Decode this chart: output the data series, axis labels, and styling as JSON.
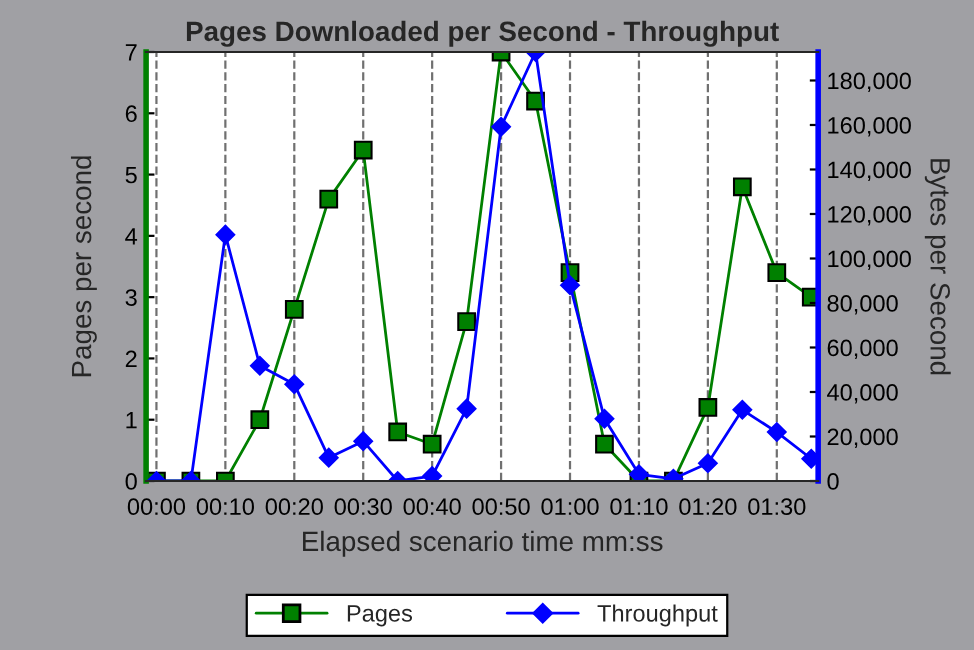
{
  "chart_data": {
    "type": "line",
    "title": "Pages Downloaded per Second - Throughput",
    "xlabel": "Elapsed scenario time mm:ss",
    "ylabel": "Pages per second",
    "y2label": "Bytes per Second",
    "x": [
      0,
      5,
      10,
      15,
      20,
      25,
      30,
      35,
      40,
      45,
      50,
      55,
      60,
      65,
      70,
      75,
      80,
      85,
      90,
      95
    ],
    "series": [
      {
        "name": "Pages",
        "color": "#008000",
        "marker": "square",
        "values": [
          0,
          0,
          0,
          1,
          2.8,
          4.6,
          5.4,
          0.8,
          0.6,
          2.6,
          7,
          6.2,
          3.4,
          0.6,
          0,
          0,
          1.2,
          4.8,
          3.4,
          3.0
        ]
      },
      {
        "name": "Throughput",
        "color": "#0000ff",
        "marker": "diamond",
        "axis": "y2",
        "values": [
          0,
          0,
          110700,
          51800,
          43500,
          10500,
          17900,
          0,
          2200,
          32500,
          159200,
          192800,
          88000,
          28000,
          3000,
          1000,
          8000,
          32000,
          22000,
          10000
        ]
      }
    ],
    "xlim": [
      -1.5,
      96
    ],
    "xticks": [
      {
        "value": 0,
        "label": "00:00"
      },
      {
        "value": 10,
        "label": "00:10"
      },
      {
        "value": 20,
        "label": "00:20"
      },
      {
        "value": 30,
        "label": "00:30"
      },
      {
        "value": 40,
        "label": "00:40"
      },
      {
        "value": 50,
        "label": "00:50"
      },
      {
        "value": 60,
        "label": "01:00"
      },
      {
        "value": 70,
        "label": "01:10"
      },
      {
        "value": 80,
        "label": "01:20"
      },
      {
        "value": 90,
        "label": "01:30"
      }
    ],
    "ylim": [
      0,
      7
    ],
    "yticks": [
      0,
      1,
      2,
      3,
      4,
      5,
      6,
      7
    ],
    "y2lim": [
      0,
      192800
    ],
    "y2ticks": [
      {
        "value": 0,
        "label": "0"
      },
      {
        "value": 20000,
        "label": "20,000"
      },
      {
        "value": 40000,
        "label": "40,000"
      },
      {
        "value": 60000,
        "label": "60,000"
      },
      {
        "value": 80000,
        "label": "80,000"
      },
      {
        "value": 100000,
        "label": "100,000"
      },
      {
        "value": 120000,
        "label": "120,000"
      },
      {
        "value": 140000,
        "label": "140,000"
      },
      {
        "value": 160000,
        "label": "160,000"
      },
      {
        "value": 180000,
        "label": "180,000"
      }
    ],
    "grid": "x",
    "legend": "bottom",
    "line_style": "solid"
  }
}
